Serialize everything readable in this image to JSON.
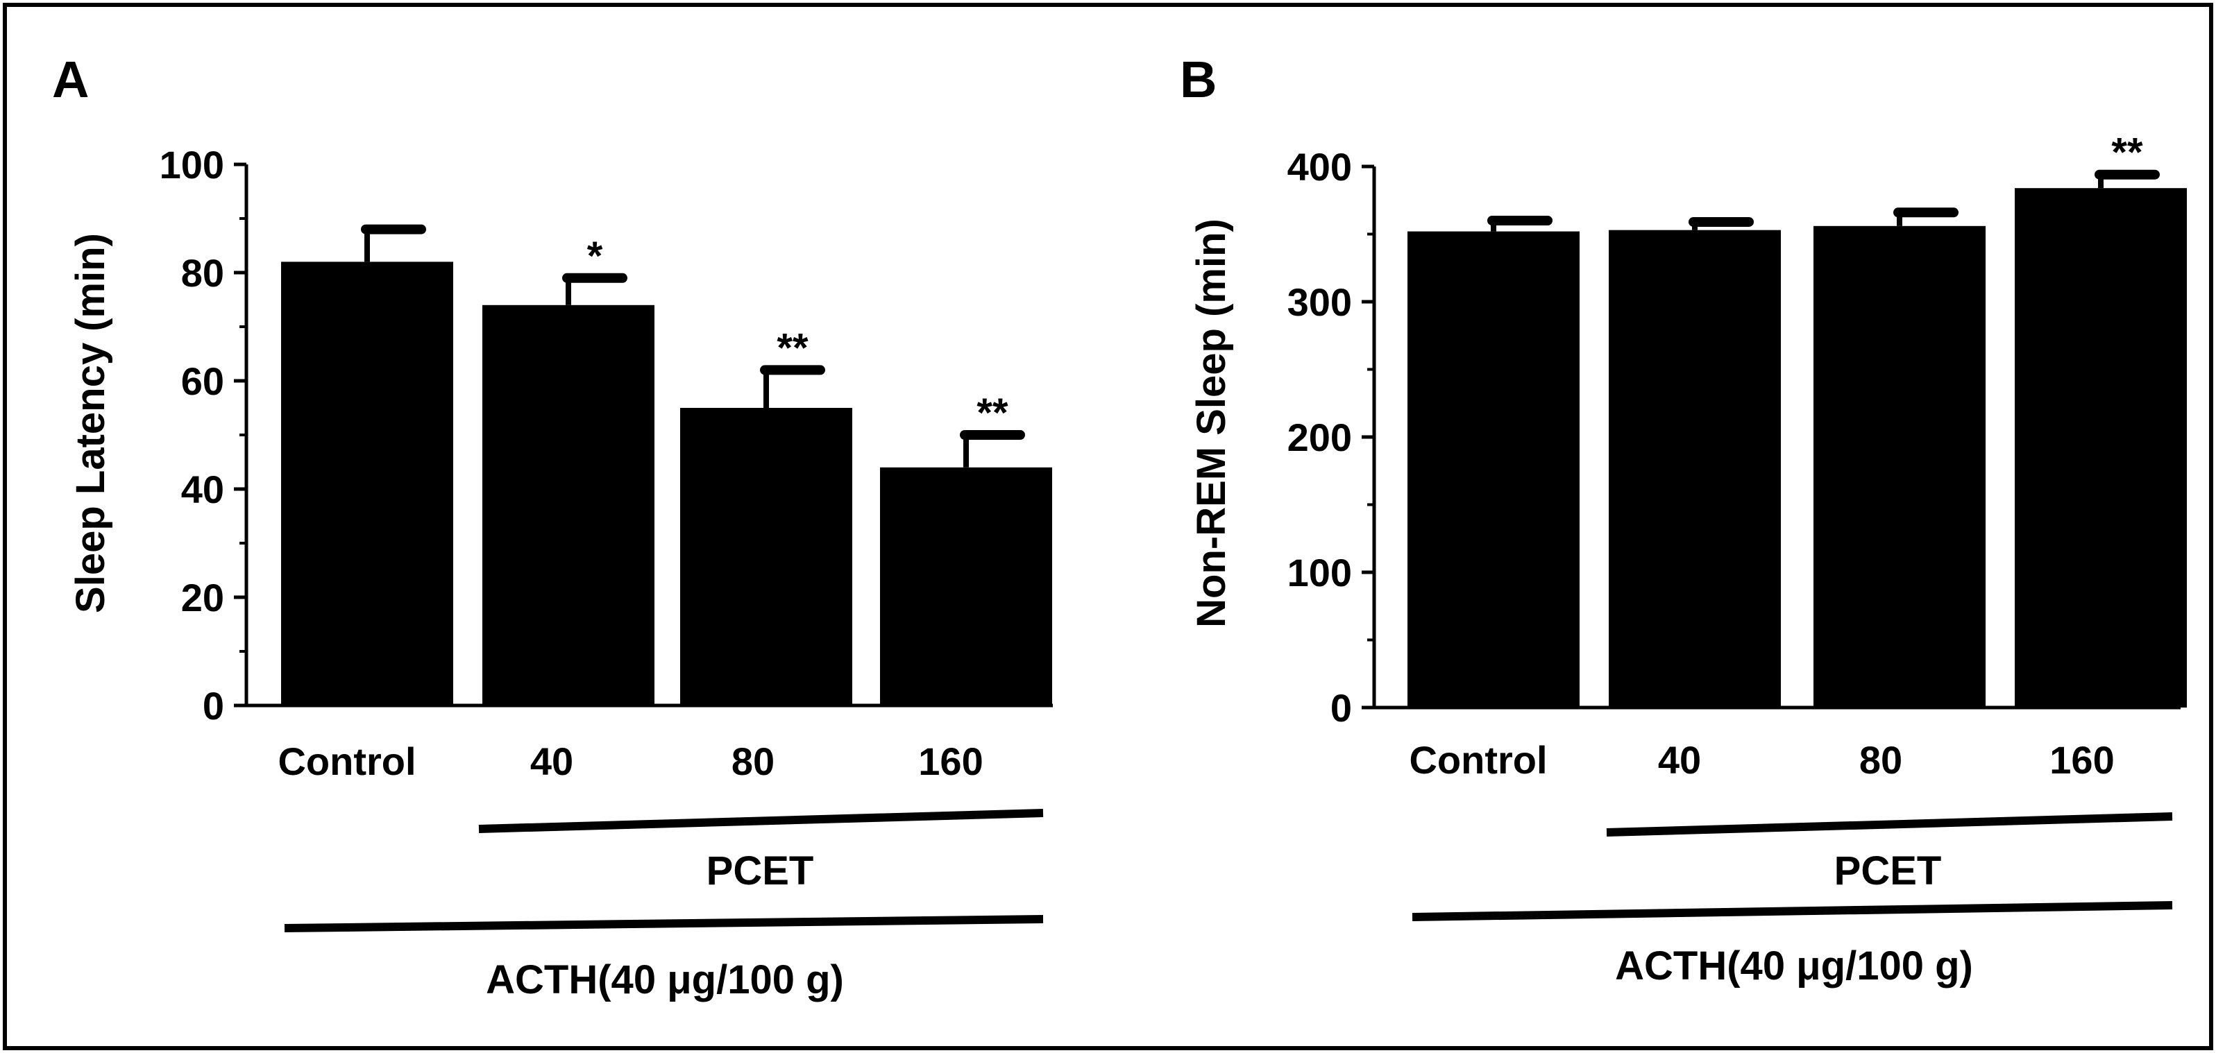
{
  "figure_frame": true,
  "chart_data": [
    {
      "panel_label": "A",
      "type": "bar",
      "categories": [
        "Control",
        "40",
        "80",
        "160"
      ],
      "values": [
        82,
        74,
        55,
        44
      ],
      "errors": [
        6,
        5,
        7,
        6
      ],
      "significance": [
        "",
        "*",
        "**",
        "**"
      ],
      "ylabel": "Sleep Latency (min)",
      "xlabel": "",
      "ylim": [
        0,
        100
      ],
      "yticks": [
        0,
        20,
        40,
        60,
        80,
        100
      ],
      "grid": false,
      "legend": "none",
      "group_labels": {
        "pcet": "PCET",
        "acth": "ACTH(40 μg/100 g)"
      }
    },
    {
      "panel_label": "B",
      "type": "bar",
      "categories": [
        "Control",
        "40",
        "80",
        "160"
      ],
      "values": [
        352,
        353,
        356,
        384
      ],
      "errors": [
        8,
        6,
        10,
        10
      ],
      "significance": [
        "",
        "",
        "",
        "**"
      ],
      "ylabel": "Non-REM Sleep (min)",
      "xlabel": "",
      "ylim": [
        0,
        400
      ],
      "yticks": [
        0,
        100,
        200,
        300,
        400
      ],
      "grid": false,
      "legend": "none",
      "group_labels": {
        "pcet": "PCET",
        "acth": "ACTH(40 μg/100 g)"
      }
    }
  ]
}
